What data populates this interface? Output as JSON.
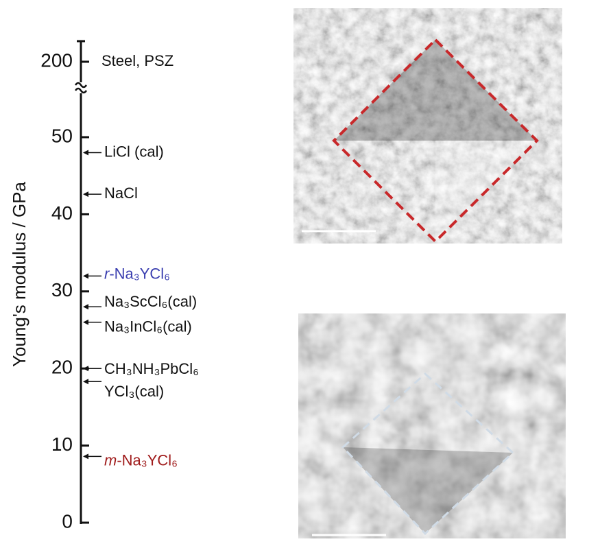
{
  "chart_data": {
    "type": "scale",
    "y_label": "Young's modulus / GPa",
    "ylim": [
      0,
      50
    ],
    "yticks": [
      0,
      10,
      20,
      30,
      40,
      50,
      200
    ],
    "axis_break": [
      50,
      200
    ],
    "categories": [
      "Steel, PSZ",
      "LiCl (cal)",
      "NaCl",
      "r-Na₃YCl₆",
      "Na₃ScCl₆(cal)",
      "Na₃InCl₆(cal)",
      "CH₃NH₃PbCl₆",
      "YCl₃(cal)",
      "m-Na₃YCl₆"
    ],
    "values": [
      200,
      48,
      42.6,
      32,
      28,
      26,
      20,
      18.3,
      8.6
    ],
    "colors": [
      "#111111",
      "#111111",
      "#111111",
      "#3b3fb0",
      "#111111",
      "#111111",
      "#111111",
      "#111111",
      "#a01c1c"
    ]
  }
}
